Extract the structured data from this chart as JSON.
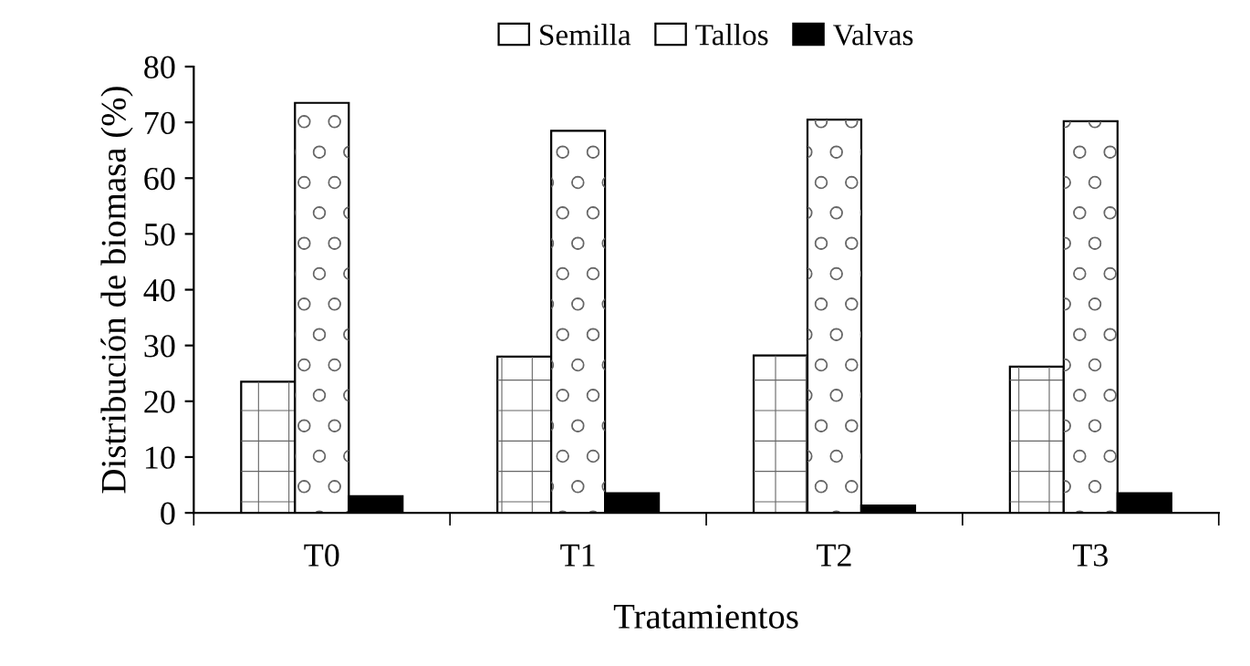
{
  "chart_data": {
    "type": "bar",
    "xlabel": "Tratamientos",
    "ylabel": "Distribución de biomasa (%)",
    "categories": [
      "T0",
      "T1",
      "T2",
      "T3"
    ],
    "series": [
      {
        "name": "Semilla",
        "color": "#ffffff",
        "values": [
          23.5,
          28,
          28.2,
          26.2
        ]
      },
      {
        "name": "Tallos",
        "color": "#ffffff",
        "values": [
          73.5,
          68.5,
          70.5,
          70.2
        ]
      },
      {
        "name": "Valvas",
        "color": "#000000",
        "values": [
          3,
          3.5,
          1.3,
          3.5
        ]
      }
    ],
    "ylim": [
      0,
      80
    ],
    "yticks": [
      0,
      10,
      20,
      30,
      40,
      50,
      60,
      70,
      80
    ],
    "legend": "top",
    "grid": false
  }
}
